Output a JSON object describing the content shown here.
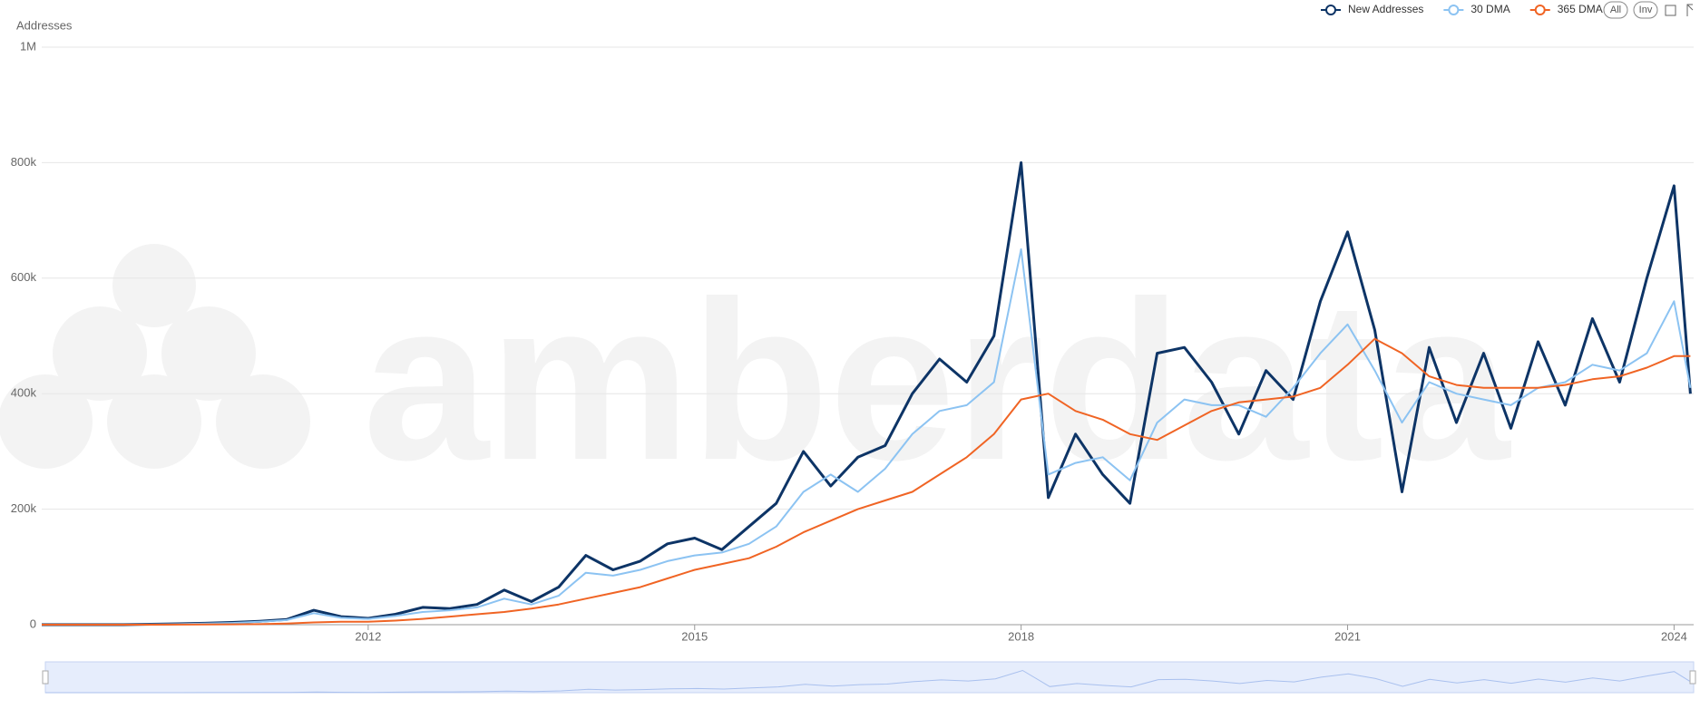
{
  "chart_data": {
    "type": "line",
    "y_label": "Addresses",
    "watermark": "amberdata",
    "buttons": [
      "All",
      "Inv"
    ],
    "x": [
      2009,
      2009.25,
      2009.5,
      2009.75,
      2010,
      2010.25,
      2010.5,
      2010.75,
      2011,
      2011.25,
      2011.5,
      2011.75,
      2012,
      2012.25,
      2012.5,
      2012.75,
      2013,
      2013.25,
      2013.5,
      2013.75,
      2014,
      2014.25,
      2014.5,
      2014.75,
      2015,
      2015.25,
      2015.5,
      2015.75,
      2016,
      2016.25,
      2016.5,
      2016.75,
      2017,
      2017.25,
      2017.5,
      2017.75,
      2018,
      2018.25,
      2018.5,
      2018.75,
      2019,
      2019.25,
      2019.5,
      2019.75,
      2020,
      2020.25,
      2020.5,
      2020.75,
      2021,
      2021.25,
      2021.5,
      2021.75,
      2022,
      2022.25,
      2022.5,
      2022.75,
      2023,
      2023.25,
      2023.5,
      2023.75,
      2024,
      2024.15
    ],
    "series": [
      {
        "name": "New Addresses",
        "color": "#0d3466",
        "values": [
          0,
          0,
          0,
          0,
          800,
          1500,
          2500,
          4000,
          6000,
          9000,
          25000,
          14000,
          11000,
          18000,
          30000,
          28000,
          35000,
          60000,
          40000,
          65000,
          120000,
          95000,
          110000,
          140000,
          150000,
          130000,
          170000,
          210000,
          300000,
          240000,
          290000,
          310000,
          400000,
          460000,
          420000,
          500000,
          800000,
          220000,
          330000,
          260000,
          210000,
          470000,
          480000,
          420000,
          330000,
          440000,
          390000,
          560000,
          680000,
          510000,
          230000,
          480000,
          350000,
          470000,
          340000,
          490000,
          380000,
          530000,
          420000,
          600000,
          760000,
          400000
        ]
      },
      {
        "name": "30 DMA",
        "color": "#8cc3f2",
        "values": [
          0,
          0,
          0,
          0,
          500,
          1000,
          2000,
          3000,
          5000,
          8000,
          20000,
          12000,
          10000,
          15000,
          22000,
          25000,
          30000,
          45000,
          35000,
          50000,
          90000,
          85000,
          95000,
          110000,
          120000,
          125000,
          140000,
          170000,
          230000,
          260000,
          230000,
          270000,
          330000,
          370000,
          380000,
          420000,
          650000,
          260000,
          280000,
          290000,
          250000,
          350000,
          390000,
          380000,
          380000,
          360000,
          410000,
          470000,
          520000,
          440000,
          350000,
          420000,
          400000,
          390000,
          380000,
          410000,
          420000,
          450000,
          440000,
          470000,
          560000,
          410000
        ]
      },
      {
        "name": "365 DMA",
        "color": "#f06424",
        "values": [
          0,
          0,
          0,
          0,
          0,
          100,
          300,
          600,
          1000,
          2000,
          4000,
          5000,
          5000,
          7000,
          10000,
          14000,
          18000,
          22000,
          28000,
          35000,
          45000,
          55000,
          65000,
          80000,
          95000,
          105000,
          115000,
          135000,
          160000,
          180000,
          200000,
          215000,
          230000,
          260000,
          290000,
          330000,
          390000,
          400000,
          370000,
          355000,
          330000,
          320000,
          345000,
          370000,
          385000,
          390000,
          395000,
          410000,
          450000,
          495000,
          470000,
          430000,
          415000,
          410000,
          410000,
          410000,
          415000,
          425000,
          430000,
          445000,
          465000,
          465000
        ]
      }
    ],
    "xlim": [
      2009,
      2024.18
    ],
    "xticks": [
      2012,
      2015,
      2018,
      2021,
      2024
    ],
    "ylim": [
      0,
      1000000
    ],
    "yticks": [
      0,
      {
        "value": 200000,
        "label": "200k"
      },
      {
        "value": 400000,
        "label": "400k"
      },
      {
        "value": 600000,
        "label": "600k"
      },
      {
        "value": 800000,
        "label": "800k"
      },
      {
        "value": 1000000,
        "label": "1M"
      }
    ],
    "grid": true
  }
}
